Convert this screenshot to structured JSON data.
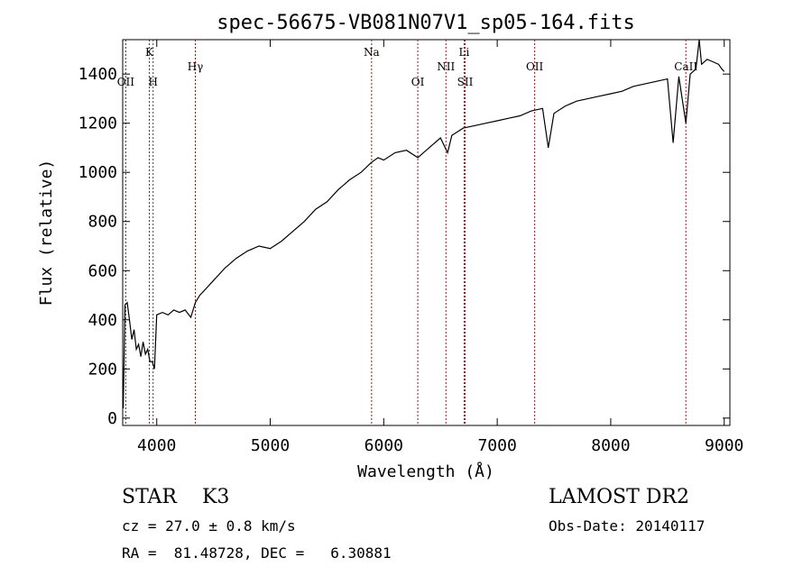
{
  "chart_data": {
    "type": "line",
    "title": "spec-56675-VB081N07V1_sp05-164.fits",
    "xlabel": "Wavelength (Å)",
    "ylabel": "Flux (relative)",
    "xlim": [
      3700,
      9050
    ],
    "ylim": [
      -30,
      1540
    ],
    "xticks": [
      4000,
      5000,
      6000,
      7000,
      8000,
      9000
    ],
    "yticks": [
      0,
      200,
      400,
      600,
      800,
      1000,
      1200,
      1400
    ],
    "line_color": "#000000",
    "marker_color": "#8b1a1a",
    "grid": false,
    "series": [
      {
        "x": [
          3705,
          3720,
          3740,
          3760,
          3780,
          3800,
          3820,
          3840,
          3860,
          3880,
          3900,
          3920,
          3940,
          3960,
          3980,
          4000,
          4050,
          4100,
          4150,
          4200,
          4250,
          4300,
          4340,
          4380,
          4420,
          4500,
          4600,
          4700,
          4800,
          4900,
          5000,
          5100,
          5200,
          5300,
          5400,
          5500,
          5600,
          5700,
          5800,
          5890,
          5950,
          6000,
          6100,
          6200,
          6300,
          6400,
          6500,
          6563,
          6600,
          6700,
          6800,
          6900,
          7000,
          7100,
          7200,
          7300,
          7400,
          7450,
          7500,
          7600,
          7700,
          7800,
          7900,
          8000,
          8100,
          8200,
          8300,
          8400,
          8500,
          8550,
          8600,
          8662,
          8700,
          8750,
          8780,
          8800,
          8850,
          8900,
          8950,
          8980,
          9000
        ],
        "y": [
          40,
          460,
          470,
          400,
          320,
          360,
          280,
          300,
          250,
          310,
          260,
          280,
          230,
          230,
          200,
          420,
          430,
          420,
          440,
          430,
          440,
          410,
          470,
          500,
          520,
          560,
          610,
          650,
          680,
          700,
          690,
          720,
          760,
          800,
          850,
          880,
          930,
          970,
          1000,
          1040,
          1060,
          1050,
          1080,
          1090,
          1060,
          1100,
          1140,
          1080,
          1150,
          1180,
          1190,
          1200,
          1210,
          1220,
          1230,
          1250,
          1260,
          1100,
          1240,
          1270,
          1290,
          1300,
          1310,
          1320,
          1330,
          1350,
          1360,
          1370,
          1380,
          1120,
          1390,
          1200,
          1400,
          1420,
          1540,
          1440,
          1460,
          1450,
          1440,
          1420,
          1410
        ]
      }
    ],
    "lines": [
      {
        "name": "OII",
        "x": 3727,
        "row": "low"
      },
      {
        "name": "K",
        "x": 3934,
        "row": "high"
      },
      {
        "name": "H",
        "x": 3968,
        "row": "low"
      },
      {
        "name": "Hγ",
        "x": 4340,
        "row": "mid"
      },
      {
        "name": "Na",
        "x": 5893,
        "row": "high"
      },
      {
        "name": "OI",
        "x": 6300,
        "row": "low"
      },
      {
        "name": "NII",
        "x": 6548,
        "row": "mid"
      },
      {
        "name": "Li",
        "x": 6708,
        "row": "high"
      },
      {
        "name": "SII",
        "x": 6717,
        "row": "low"
      },
      {
        "name": "OII",
        "x": 7330,
        "row": "mid"
      },
      {
        "name": "CaII",
        "x": 8662,
        "row": "mid"
      }
    ]
  },
  "info": {
    "classification": "STAR    K3",
    "survey": "LAMOST DR2",
    "redshift": "cz = 27.0 ± 0.8 km/s",
    "obs_date": "Obs-Date: 20140117",
    "coords": "RA =  81.48728, DEC =   6.30881"
  }
}
